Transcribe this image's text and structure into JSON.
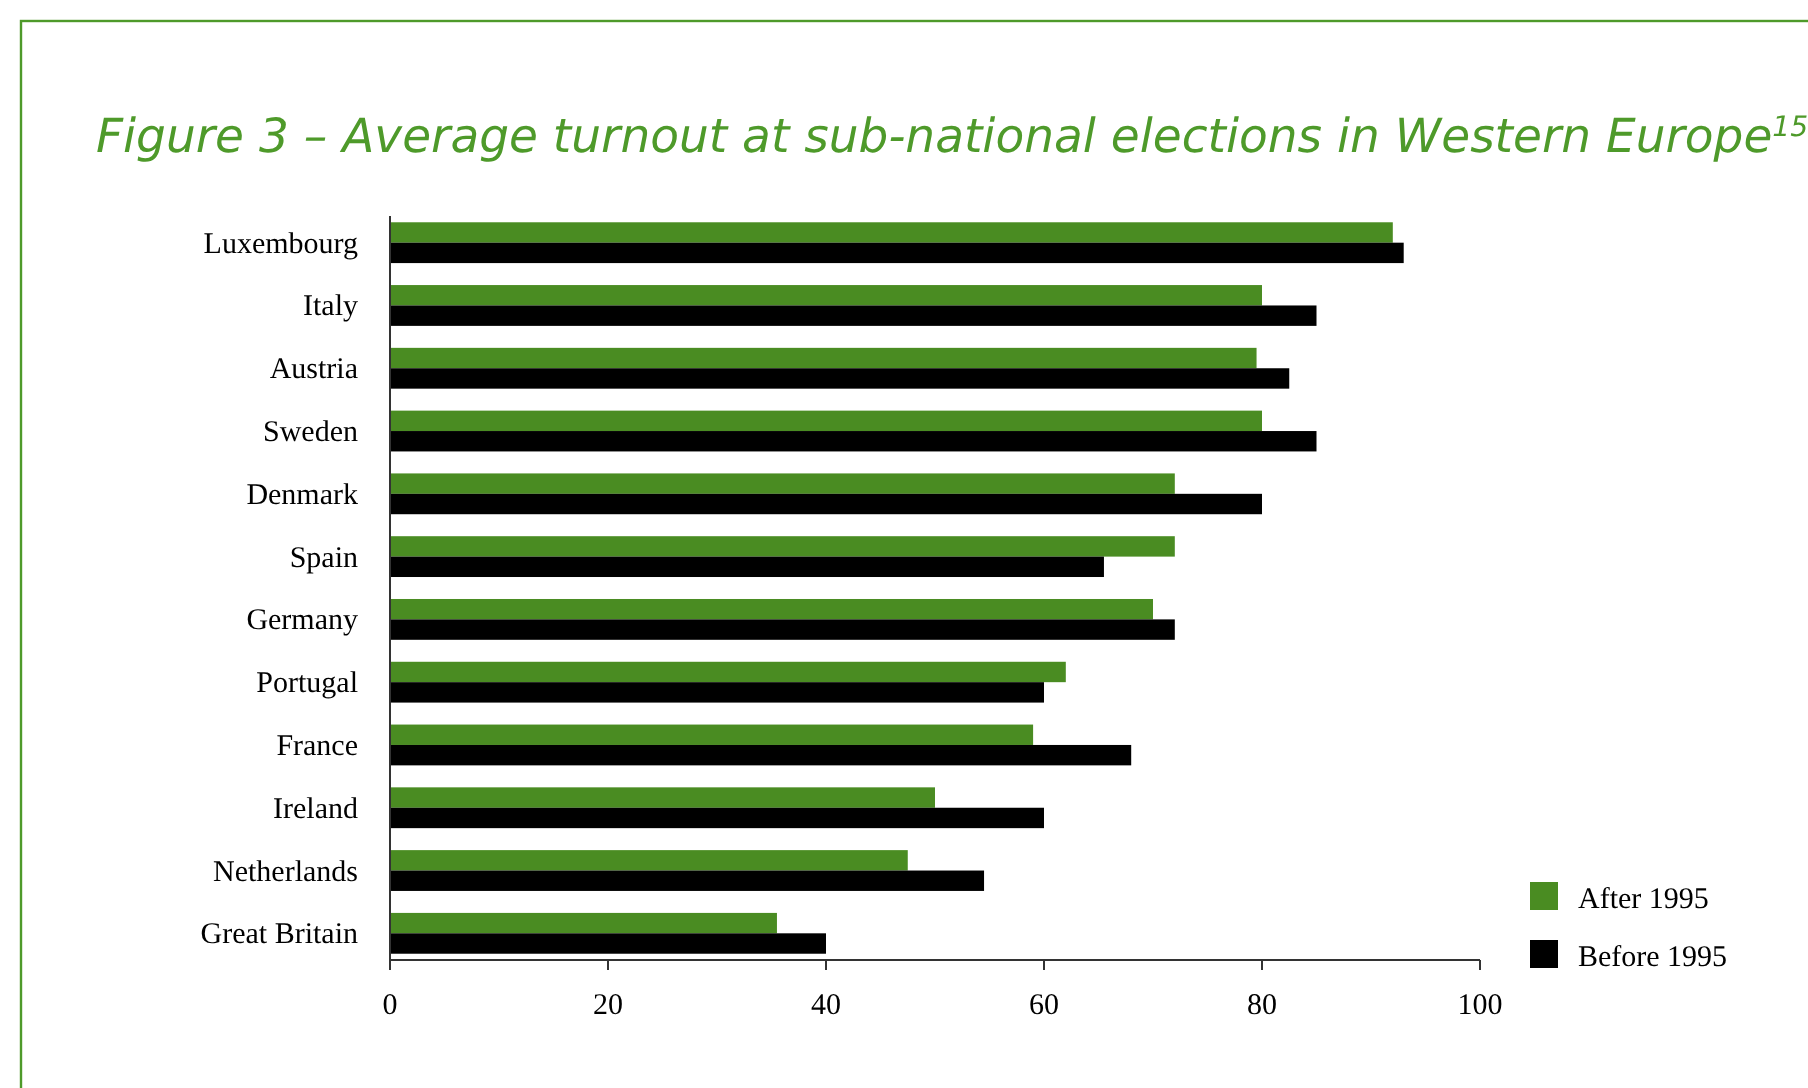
{
  "chart_data": {
    "type": "bar",
    "orientation": "horizontal",
    "title": "Figure 3 – Average turnout at sub-national elections in Western Europe$^{15}$",
    "categories": [
      "Luxembourg",
      "Italy",
      "Austria",
      "Sweden",
      "Denmark",
      "Spain",
      "Germany",
      "Portugal",
      "France",
      "Ireland",
      "Netherlands",
      "Great Britain"
    ],
    "series": [
      {
        "name": "After 1995",
        "color": "#4a8c22",
        "values": [
          92,
          80,
          79.5,
          80,
          72,
          72,
          70,
          62,
          59,
          50,
          47.5,
          35.5
        ]
      },
      {
        "name": "Before 1995",
        "color": "#000000",
        "values": [
          93,
          85,
          82.5,
          85,
          80,
          65.5,
          72,
          60,
          68,
          60,
          54.5,
          40
        ]
      }
    ],
    "xlim": [
      0,
      100
    ],
    "xticks": [
      0,
      20,
      40,
      60,
      80,
      100
    ],
    "grid": false,
    "legend": "bottom right"
  }
}
